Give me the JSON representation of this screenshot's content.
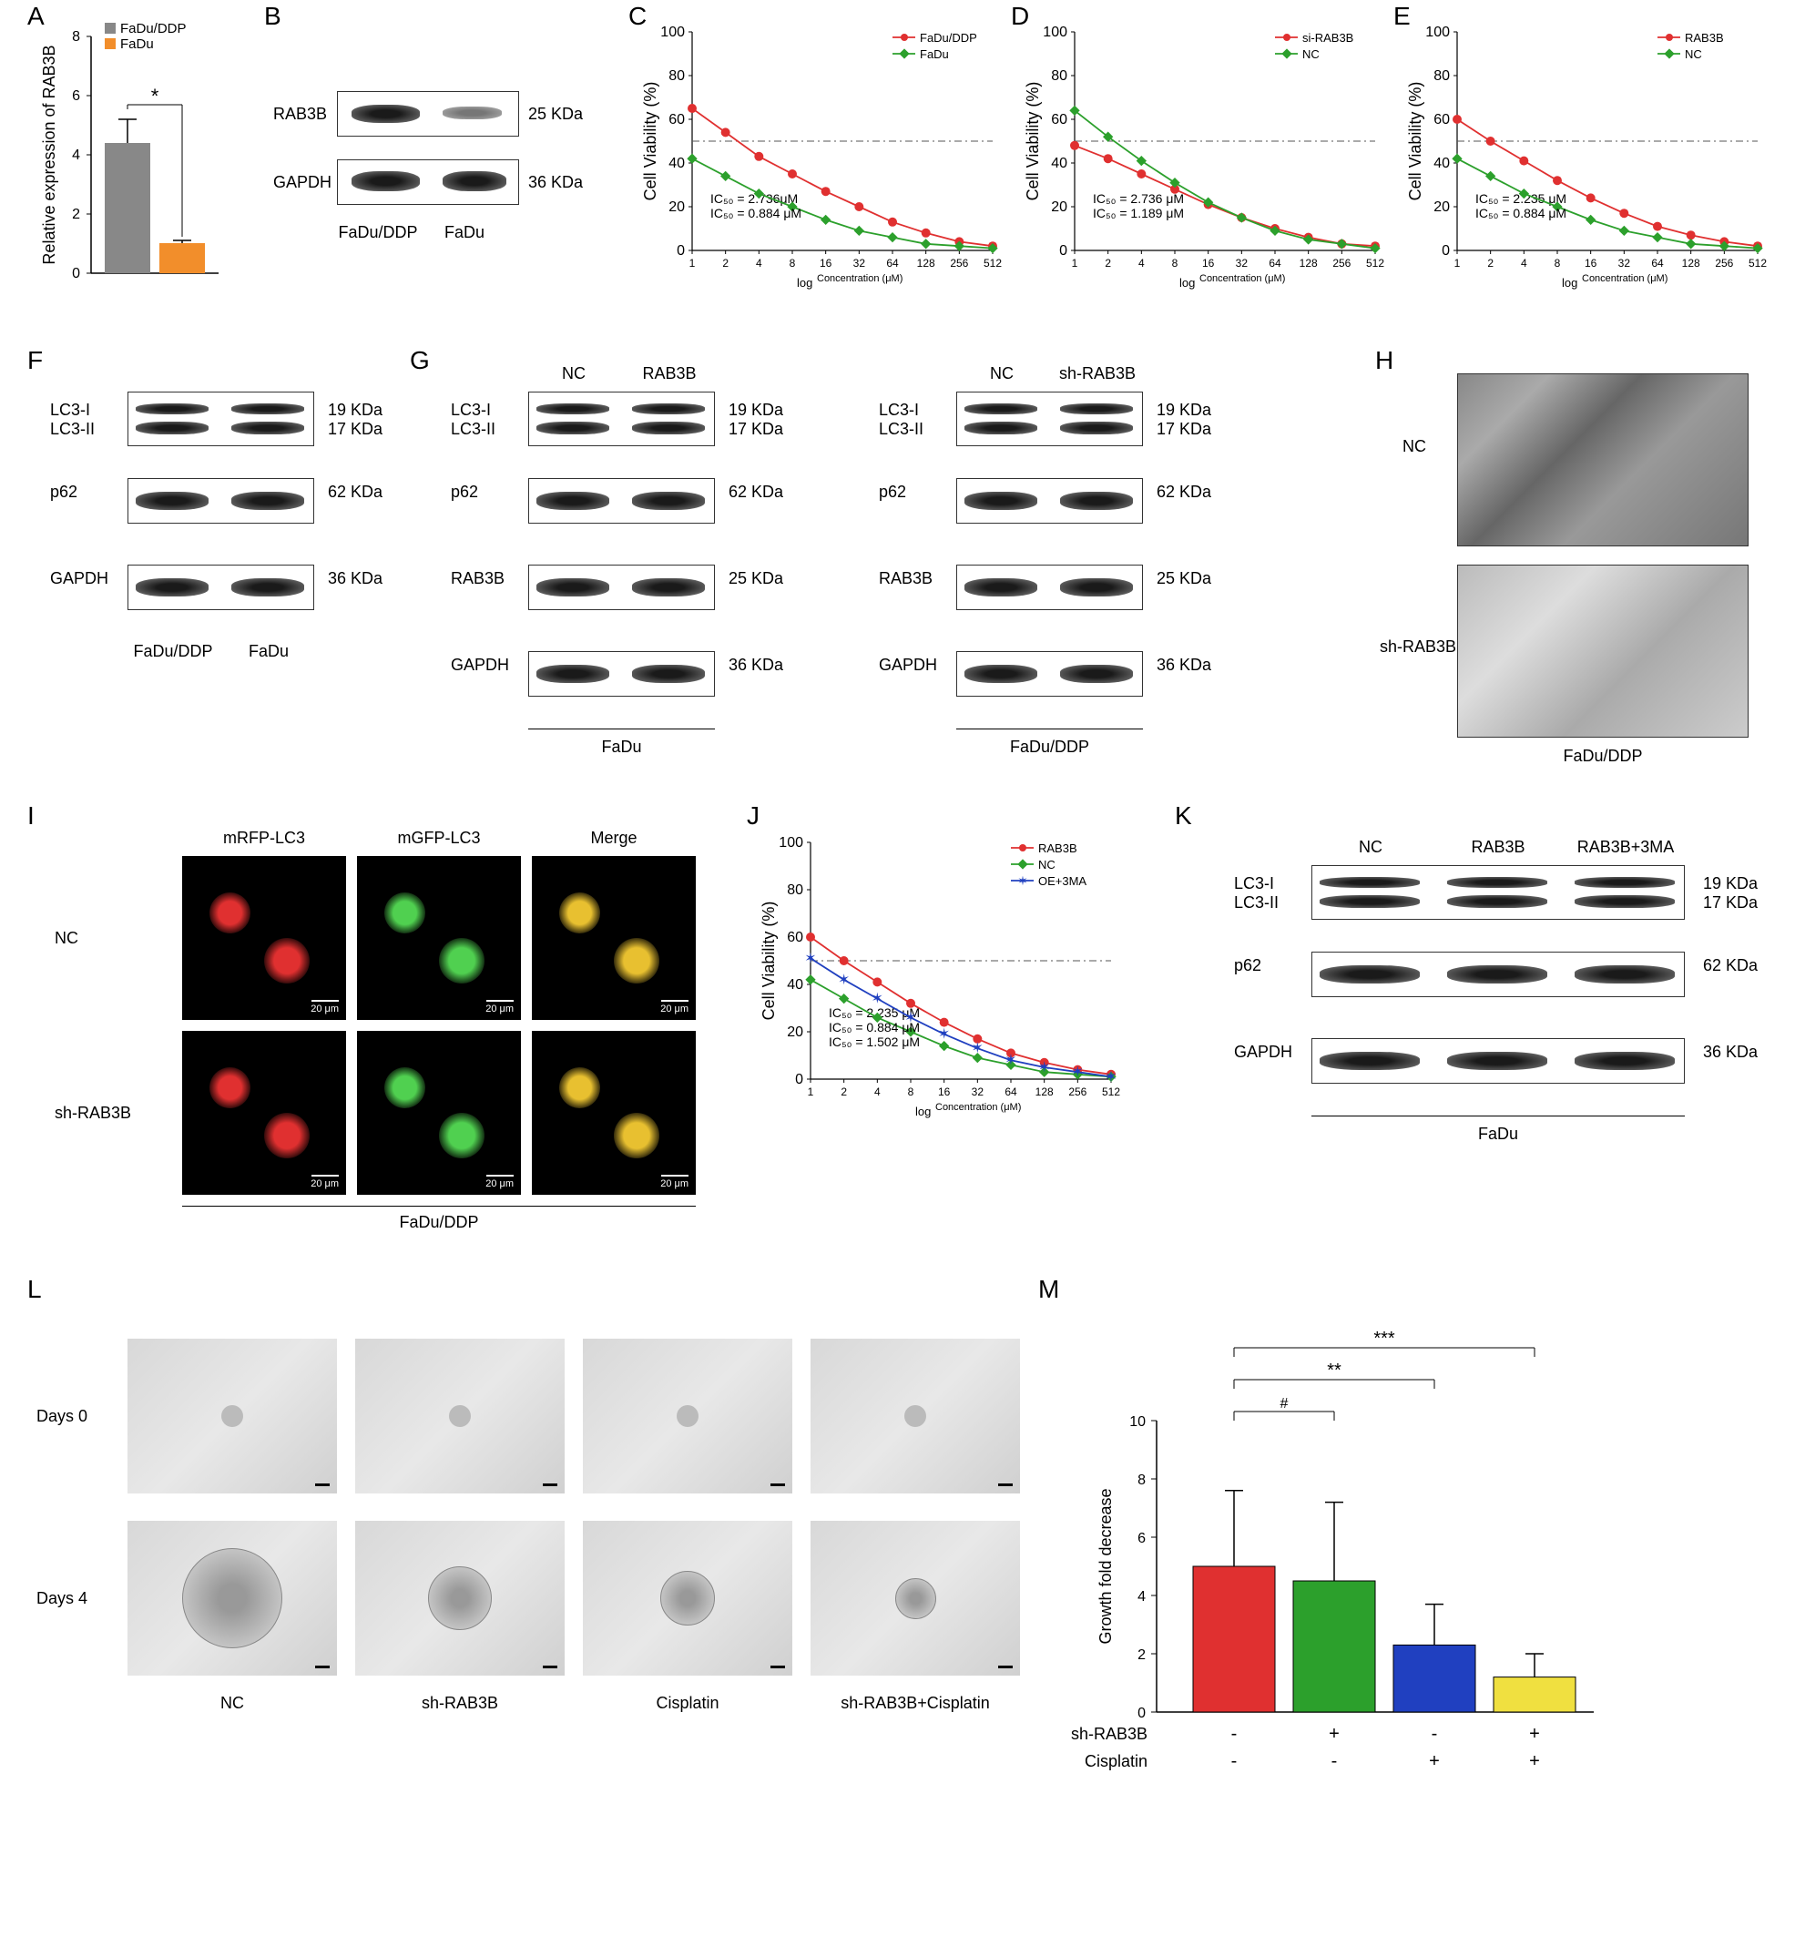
{
  "panelA": {
    "label": "A",
    "type": "bar",
    "ylabel": "Relative expression of RAB3B",
    "ylim": [
      0,
      8
    ],
    "ytick_step": 2,
    "categories": [
      "FaDu/DDP",
      "FaDu"
    ],
    "values": [
      4.4,
      1.0
    ],
    "errors": [
      0.8,
      0.1
    ],
    "colors": [
      "#888888",
      "#f28e2b"
    ],
    "sig": "*",
    "bar_width": 0.6
  },
  "panelB": {
    "label": "B",
    "type": "western",
    "proteins": [
      "RAB3B",
      "GAPDH"
    ],
    "weights": [
      "25 KDa",
      "36 KDa"
    ],
    "samples": [
      "FaDu/DDP",
      "FaDu"
    ]
  },
  "panelC": {
    "label": "C",
    "type": "line",
    "xlabel": "Concentration (μM)",
    "xlabel_prefix": "log",
    "ylabel": "Cell Viability (%)",
    "xticks": [
      1,
      2,
      4,
      8,
      16,
      32,
      64,
      128,
      256,
      512
    ],
    "ylim": [
      0,
      100
    ],
    "ytick_step": 20,
    "series": [
      {
        "name": "FaDu/DDP",
        "color": "#e03030",
        "marker": "circle",
        "ic50": "IC₅₀ = 2.736μM",
        "y": [
          65,
          54,
          43,
          35,
          27,
          20,
          13,
          8,
          4,
          2
        ]
      },
      {
        "name": "FaDu",
        "color": "#2ca02c",
        "marker": "diamond",
        "ic50": "IC₅₀ = 0.884 μM",
        "y": [
          42,
          34,
          26,
          20,
          14,
          9,
          6,
          3,
          2,
          1
        ]
      }
    ],
    "ref_line": 50
  },
  "panelD": {
    "label": "D",
    "type": "line",
    "xlabel": "Concentration (μM)",
    "xlabel_prefix": "log",
    "ylabel": "Cell Viability (%)",
    "xticks": [
      1,
      2,
      4,
      8,
      16,
      32,
      64,
      128,
      256,
      512
    ],
    "ylim": [
      0,
      100
    ],
    "ytick_step": 20,
    "series": [
      {
        "name": "si-RAB3B",
        "color": "#e03030",
        "marker": "circle",
        "ic50": "IC₅₀ = 2.736 μM",
        "y": [
          48,
          42,
          35,
          28,
          21,
          15,
          10,
          6,
          3,
          2
        ]
      },
      {
        "name": "NC",
        "color": "#2ca02c",
        "marker": "diamond",
        "ic50": "IC₅₀ = 1.189 μM",
        "y": [
          64,
          52,
          41,
          31,
          22,
          15,
          9,
          5,
          3,
          1
        ]
      }
    ],
    "ref_line": 50
  },
  "panelE": {
    "label": "E",
    "type": "line",
    "xlabel": "Concentration (μM)",
    "xlabel_prefix": "log",
    "ylabel": "Cell Viability (%)",
    "xticks": [
      1,
      2,
      4,
      8,
      16,
      32,
      64,
      128,
      256,
      512
    ],
    "ylim": [
      0,
      100
    ],
    "ytick_step": 20,
    "series": [
      {
        "name": "RAB3B",
        "color": "#e03030",
        "marker": "circle",
        "ic50": "IC₅₀ = 2.235 μM",
        "y": [
          60,
          50,
          41,
          32,
          24,
          17,
          11,
          7,
          4,
          2
        ]
      },
      {
        "name": "NC",
        "color": "#2ca02c",
        "marker": "diamond",
        "ic50": "IC₅₀ = 0.884 μM",
        "y": [
          42,
          34,
          26,
          20,
          14,
          9,
          6,
          3,
          2,
          1
        ]
      }
    ],
    "ref_line": 50
  },
  "panelF": {
    "label": "F",
    "type": "western",
    "proteins": [
      "LC3-I\nLC3-II",
      "p62",
      "GAPDH"
    ],
    "weights": [
      "19 KDa\n17 KDa",
      "62 KDa",
      "36 KDa"
    ],
    "samples": [
      "FaDu/DDP",
      "FaDu"
    ]
  },
  "panelG": {
    "label": "G",
    "type": "western",
    "left": {
      "top_labels": [
        "NC",
        "RAB3B"
      ],
      "proteins": [
        "LC3-I\nLC3-II",
        "p62",
        "RAB3B",
        "GAPDH"
      ],
      "weights": [
        "19 KDa\n17 KDa",
        "62 KDa",
        "25 KDa",
        "36 KDa"
      ],
      "bottom": "FaDu"
    },
    "right": {
      "top_labels": [
        "NC",
        "sh-RAB3B"
      ],
      "proteins": [
        "LC3-I\nLC3-II",
        "p62",
        "RAB3B",
        "GAPDH"
      ],
      "weights": [
        "19 KDa\n17 KDa",
        "62 KDa",
        "25 KDa",
        "36 KDa"
      ],
      "bottom": "FaDu/DDP"
    }
  },
  "panelH": {
    "label": "H",
    "rows": [
      "NC",
      "sh-RAB3B"
    ],
    "bottom": "FaDu/DDP"
  },
  "panelI": {
    "label": "I",
    "cols": [
      "mRFP-LC3",
      "mGFP-LC3",
      "Merge"
    ],
    "rows": [
      "NC",
      "sh-RAB3B"
    ],
    "bottom": "FaDu/DDP",
    "colors": {
      "red": "#e03030",
      "green": "#50d050",
      "merge": "#e8c030"
    },
    "scale": "20 μm"
  },
  "panelJ": {
    "label": "J",
    "type": "line",
    "xlabel": "Concentration (μM)",
    "xlabel_prefix": "log",
    "ylabel": "Cell Viability (%)",
    "xticks": [
      1,
      2,
      4,
      8,
      16,
      32,
      64,
      128,
      256,
      512
    ],
    "ylim": [
      0,
      100
    ],
    "ytick_step": 20,
    "series": [
      {
        "name": "RAB3B",
        "color": "#e03030",
        "marker": "circle",
        "ic50": "IC₅₀ = 2.235 μM",
        "y": [
          60,
          50,
          41,
          32,
          24,
          17,
          11,
          7,
          4,
          2
        ]
      },
      {
        "name": "NC",
        "color": "#2ca02c",
        "marker": "diamond",
        "ic50": "IC₅₀ = 0.884 μM",
        "y": [
          42,
          34,
          26,
          20,
          14,
          9,
          6,
          3,
          2,
          1
        ]
      },
      {
        "name": "OE+3MA",
        "color": "#2040c0",
        "marker": "star",
        "ic50": "IC₅₀ = 1.502 μM",
        "y": [
          51,
          42,
          34,
          26,
          19,
          13,
          8,
          5,
          3,
          1
        ]
      }
    ],
    "ref_line": 50
  },
  "panelK": {
    "label": "K",
    "type": "western",
    "top_labels": [
      "NC",
      "RAB3B",
      "RAB3B+3MA"
    ],
    "proteins": [
      "LC3-I\nLC3-II",
      "p62",
      "GAPDH"
    ],
    "weights": [
      "19 KDa\n17 KDa",
      "62 KDa",
      "36 KDa"
    ],
    "bottom": "FaDu"
  },
  "panelL": {
    "label": "L",
    "rows": [
      "Days 0",
      "Days 4"
    ],
    "cols": [
      "NC",
      "sh-RAB3B",
      "Cisplatin",
      "sh-RAB3B+Cisplatin"
    ]
  },
  "panelM": {
    "label": "M",
    "type": "bar",
    "ylabel": "Growth fold decrease",
    "ylim": [
      0,
      10
    ],
    "ytick_step": 2,
    "values": [
      5.0,
      4.5,
      2.3,
      1.2
    ],
    "errors": [
      2.6,
      2.7,
      1.4,
      0.8
    ],
    "colors": [
      "#e03030",
      "#2ca02c",
      "#2040c0",
      "#f0e040"
    ],
    "row_labels": [
      "sh-RAB3B",
      "Cisplatin"
    ],
    "row_values": [
      [
        "-",
        "+",
        "-",
        "+"
      ],
      [
        "-",
        "-",
        "+",
        "+"
      ]
    ],
    "sig": [
      {
        "from": 0,
        "to": 1,
        "label": "#"
      },
      {
        "from": 0,
        "to": 2,
        "label": "**"
      },
      {
        "from": 0,
        "to": 3,
        "label": "***"
      }
    ]
  }
}
